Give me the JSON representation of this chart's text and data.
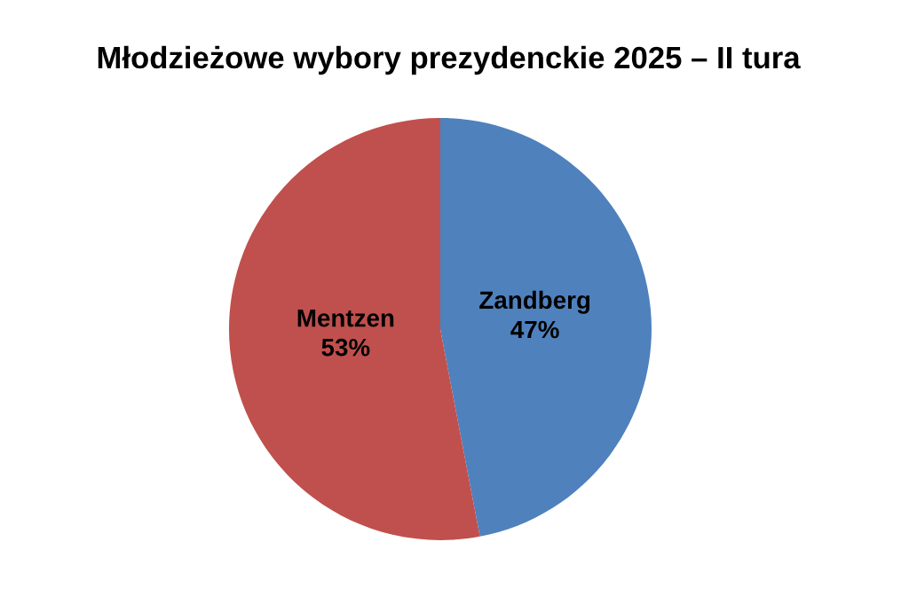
{
  "chart_data": {
    "type": "pie",
    "title": "Młodzieżowe wybory prezydenckie 2025 – II tura",
    "categories": [
      "Zandberg",
      "Mentzen"
    ],
    "values": [
      47,
      53
    ],
    "colors": [
      "#4f81bd",
      "#c0504d"
    ],
    "value_labels": [
      "47%",
      "53%"
    ]
  }
}
